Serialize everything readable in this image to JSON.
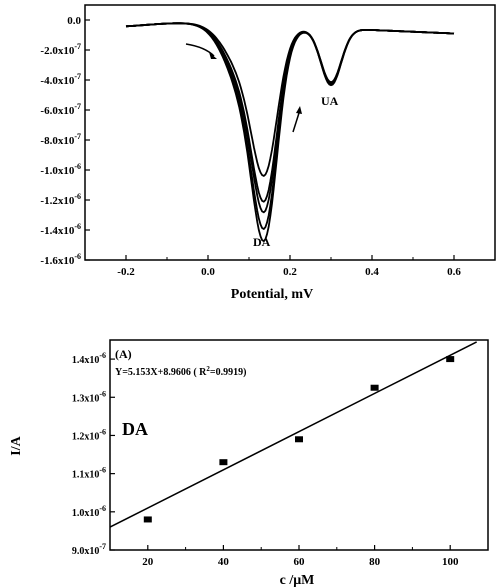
{
  "chart_data": [
    {
      "type": "line",
      "xlabel": "Potential, mV",
      "ylabel": "",
      "xlim": [
        -0.3,
        0.7
      ],
      "ylim": [
        -1.6e-06,
        1e-07
      ],
      "x_ticks": [
        {
          "v": -0.2,
          "label": "-0.2"
        },
        {
          "v": 0.0,
          "label": "0.0"
        },
        {
          "v": 0.2,
          "label": "0.2"
        },
        {
          "v": 0.4,
          "label": "0.4"
        },
        {
          "v": 0.6,
          "label": "0.6"
        }
      ],
      "y_ticks": [
        {
          "v": 0.0,
          "label": "0.0"
        },
        {
          "v": -2e-07,
          "label": "-2.0x10",
          "exp": "-7"
        },
        {
          "v": -4e-07,
          "label": "-4.0x10",
          "exp": "-7"
        },
        {
          "v": -6e-07,
          "label": "-6.0x10",
          "exp": "-7"
        },
        {
          "v": -8e-07,
          "label": "-8.0x10",
          "exp": "-7"
        },
        {
          "v": -1e-06,
          "label": "-1.0x10",
          "exp": "-6"
        },
        {
          "v": -1.2e-06,
          "label": "-1.2x10",
          "exp": "-6"
        },
        {
          "v": -1.4e-06,
          "label": "-1.4x10",
          "exp": "-6"
        },
        {
          "v": -1.6e-06,
          "label": "-1.6x10",
          "exp": "-6"
        }
      ],
      "peaks": {
        "da_x": 0.14,
        "ua_x": 0.3
      },
      "series_peak_currents": [
        -9.8e-07,
        -1.15e-06,
        -1.22e-06,
        -1.33e-06,
        -1.41e-06
      ],
      "annotations": [
        "DA",
        "UA"
      ],
      "grid": false
    },
    {
      "type": "scatter",
      "panel_label": "(A)",
      "equation": "Y=5.153X+8.9606 ( R",
      "equation_tail": "=0.9919)",
      "equation_sup": "2",
      "analyte": "DA",
      "xlabel": "c /μM",
      "ylabel": "I/A",
      "xlim": [
        10,
        110
      ],
      "ylim": [
        9e-07,
        1.45e-06
      ],
      "x_ticks": [
        {
          "v": 20,
          "label": "20"
        },
        {
          "v": 40,
          "label": "40"
        },
        {
          "v": 60,
          "label": "60"
        },
        {
          "v": 80,
          "label": "80"
        },
        {
          "v": 100,
          "label": "100"
        }
      ],
      "y_ticks": [
        {
          "v": 9e-07,
          "label": "9.0x10",
          "exp": "-7"
        },
        {
          "v": 1e-06,
          "label": "1.0x10",
          "exp": "-6"
        },
        {
          "v": 1.1e-06,
          "label": "1.1x10",
          "exp": "-6"
        },
        {
          "v": 1.2e-06,
          "label": "1.2x10",
          "exp": "-6"
        },
        {
          "v": 1.3e-06,
          "label": "1.3x10",
          "exp": "-6"
        },
        {
          "v": 1.4e-06,
          "label": "1.4x10",
          "exp": "-6"
        }
      ],
      "points": [
        {
          "x": 20,
          "y": 9.8e-07
        },
        {
          "x": 40,
          "y": 1.13e-06
        },
        {
          "x": 60,
          "y": 1.19e-06
        },
        {
          "x": 80,
          "y": 1.325e-06
        },
        {
          "x": 100,
          "y": 1.4e-06
        }
      ],
      "fit_line": [
        {
          "x": 10,
          "y": 9.6e-07
        },
        {
          "x": 107,
          "y": 1.445e-06
        }
      ],
      "grid": false
    }
  ]
}
